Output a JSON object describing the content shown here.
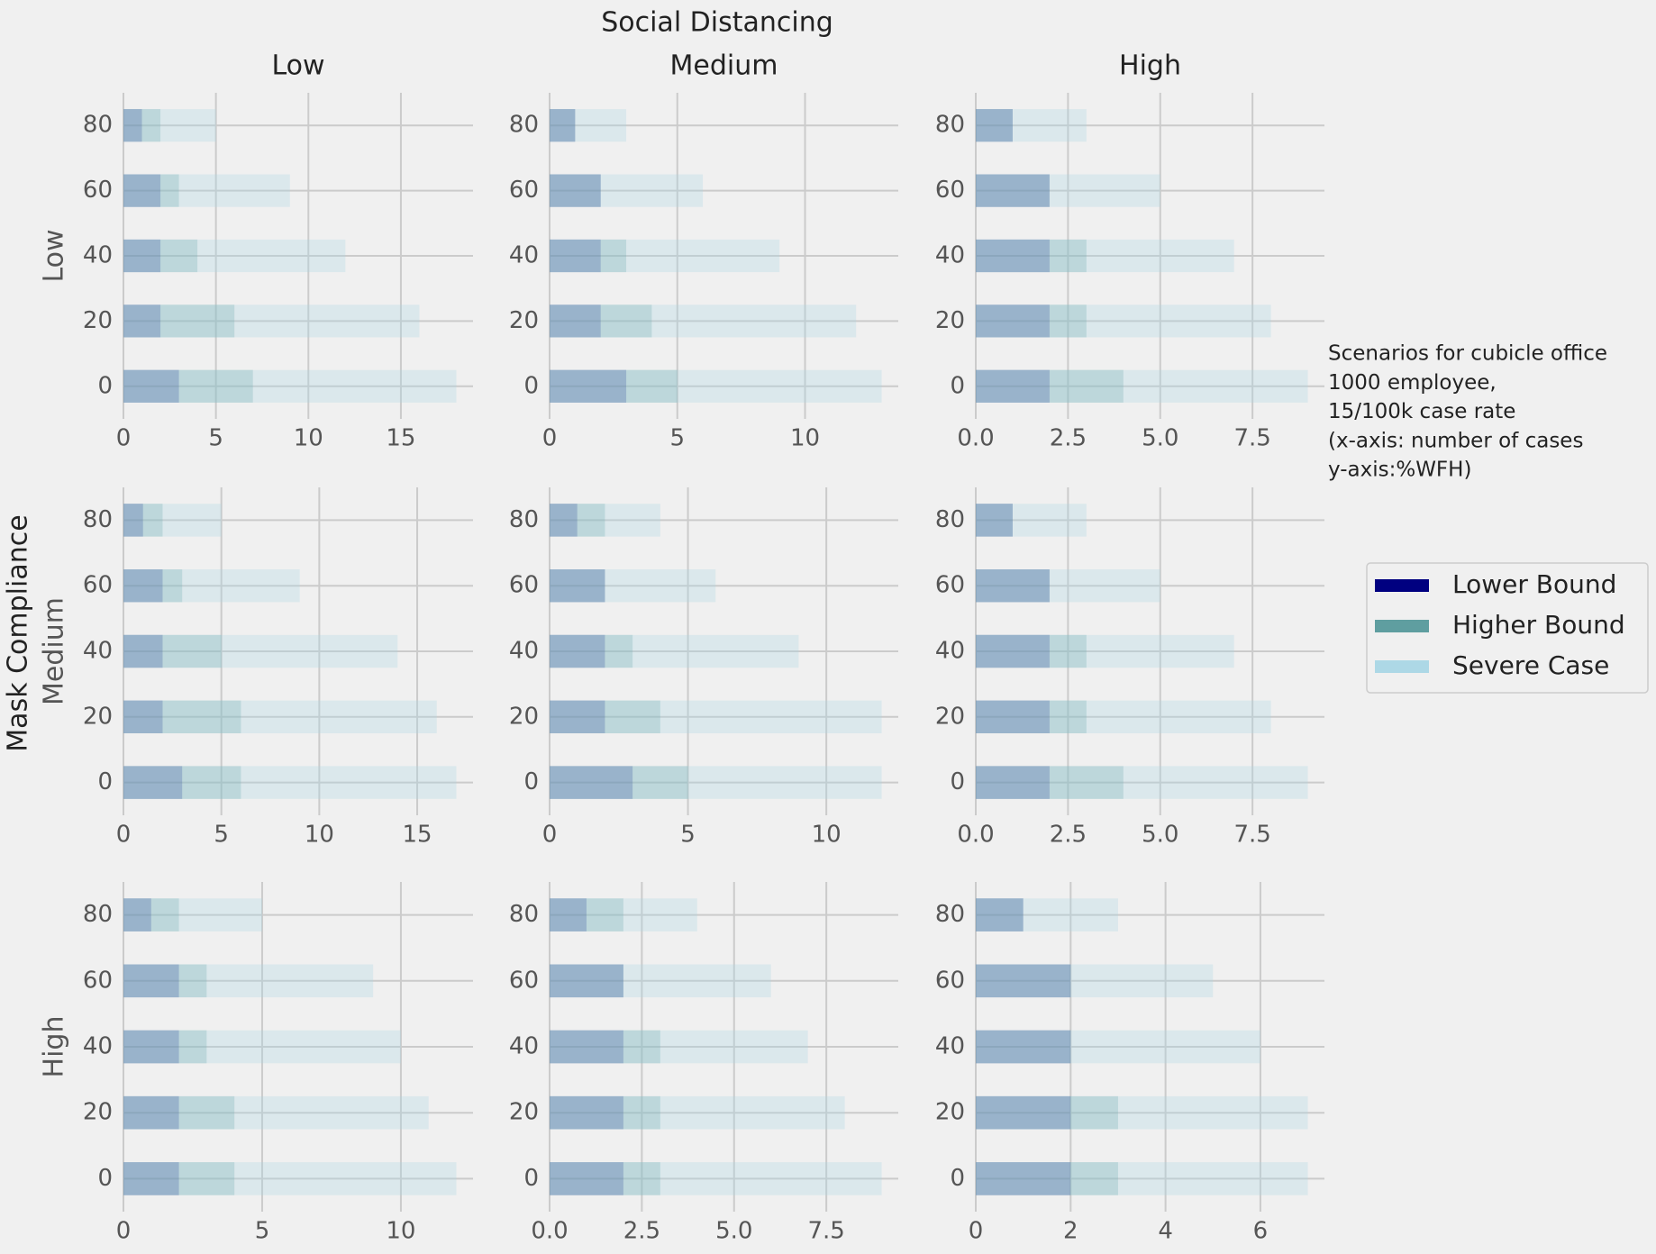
{
  "title": "Social Distancing",
  "column_labels": [
    "Low",
    "Medium",
    "High"
  ],
  "row_labels": [
    "Low",
    "Medium",
    "High"
  ],
  "row_axis_label": "Mask Compliance",
  "annotation": [
    " Scenarios for cubicle office",
    "1000 employee,",
    "15/100k case rate",
    "(x-axis: number of cases",
    "y-axis:%WFH)"
  ],
  "chart_data": [
    {
      "type": "barh",
      "categories": [
        0,
        20,
        40,
        60,
        80
      ],
      "xlim": [
        0,
        18.9
      ],
      "xticks": [
        0,
        5,
        10,
        15
      ],
      "grid": true,
      "series": [
        {
          "name": "Lower Bound",
          "color": "#000080",
          "values": [
            3,
            2,
            2,
            2,
            1
          ]
        },
        {
          "name": "Higher Bound",
          "color": "#5f9ea0",
          "values": [
            7,
            6,
            4,
            3,
            2
          ]
        },
        {
          "name": "Severe Case",
          "color": "#add8e6",
          "values": [
            18,
            16,
            12,
            9,
            5
          ]
        }
      ]
    },
    {
      "type": "barh",
      "categories": [
        0,
        20,
        40,
        60,
        80
      ],
      "xlim": [
        0,
        13.65
      ],
      "xticks": [
        0,
        5,
        10
      ],
      "grid": true,
      "series": [
        {
          "name": "Lower Bound",
          "color": "#000080",
          "values": [
            3,
            2,
            2,
            2,
            1
          ]
        },
        {
          "name": "Higher Bound",
          "color": "#5f9ea0",
          "values": [
            5,
            4,
            3,
            2,
            1
          ]
        },
        {
          "name": "Severe Case",
          "color": "#add8e6",
          "values": [
            13,
            12,
            9,
            6,
            3
          ]
        }
      ]
    },
    {
      "type": "barh",
      "categories": [
        0,
        20,
        40,
        60,
        80
      ],
      "xlim": [
        0,
        9.45
      ],
      "xticks": [
        {
          "value": 0,
          "label": "0.0"
        },
        2.5,
        {
          "value": 5,
          "label": "5.0"
        },
        7.5
      ],
      "grid": true,
      "series": [
        {
          "name": "Lower Bound",
          "color": "#000080",
          "values": [
            2,
            2,
            2,
            2,
            1
          ]
        },
        {
          "name": "Higher Bound",
          "color": "#5f9ea0",
          "values": [
            4,
            3,
            3,
            2,
            1
          ]
        },
        {
          "name": "Severe Case",
          "color": "#add8e6",
          "values": [
            9,
            8,
            7,
            5,
            3
          ]
        }
      ]
    },
    {
      "type": "barh",
      "categories": [
        0,
        20,
        40,
        60,
        80
      ],
      "xlim": [
        0,
        17.85
      ],
      "xticks": [
        0,
        5,
        10,
        15
      ],
      "grid": true,
      "series": [
        {
          "name": "Lower Bound",
          "color": "#000080",
          "values": [
            3,
            2,
            2,
            2,
            1
          ]
        },
        {
          "name": "Higher Bound",
          "color": "#5f9ea0",
          "values": [
            6,
            6,
            5,
            3,
            2
          ]
        },
        {
          "name": "Severe Case",
          "color": "#add8e6",
          "values": [
            17,
            16,
            14,
            9,
            5
          ]
        }
      ]
    },
    {
      "type": "barh",
      "categories": [
        0,
        20,
        40,
        60,
        80
      ],
      "xlim": [
        0,
        12.6
      ],
      "xticks": [
        0,
        5,
        10
      ],
      "grid": true,
      "series": [
        {
          "name": "Lower Bound",
          "color": "#000080",
          "values": [
            3,
            2,
            2,
            2,
            1
          ]
        },
        {
          "name": "Higher Bound",
          "color": "#5f9ea0",
          "values": [
            5,
            4,
            3,
            2,
            2
          ]
        },
        {
          "name": "Severe Case",
          "color": "#add8e6",
          "values": [
            12,
            12,
            9,
            6,
            4
          ]
        }
      ]
    },
    {
      "type": "barh",
      "categories": [
        0,
        20,
        40,
        60,
        80
      ],
      "xlim": [
        0,
        9.45
      ],
      "xticks": [
        {
          "value": 0,
          "label": "0.0"
        },
        2.5,
        {
          "value": 5,
          "label": "5.0"
        },
        7.5
      ],
      "grid": true,
      "series": [
        {
          "name": "Lower Bound",
          "color": "#000080",
          "values": [
            2,
            2,
            2,
            2,
            1
          ]
        },
        {
          "name": "Higher Bound",
          "color": "#5f9ea0",
          "values": [
            4,
            3,
            3,
            2,
            1
          ]
        },
        {
          "name": "Severe Case",
          "color": "#add8e6",
          "values": [
            9,
            8,
            7,
            5,
            3
          ]
        }
      ]
    },
    {
      "type": "barh",
      "categories": [
        0,
        20,
        40,
        60,
        80
      ],
      "xlim": [
        0,
        12.6
      ],
      "xticks": [
        0,
        5,
        10
      ],
      "grid": true,
      "series": [
        {
          "name": "Lower Bound",
          "color": "#000080",
          "values": [
            2,
            2,
            2,
            2,
            1
          ]
        },
        {
          "name": "Higher Bound",
          "color": "#5f9ea0",
          "values": [
            4,
            4,
            3,
            3,
            2
          ]
        },
        {
          "name": "Severe Case",
          "color": "#add8e6",
          "values": [
            12,
            11,
            10,
            9,
            5
          ]
        }
      ]
    },
    {
      "type": "barh",
      "categories": [
        0,
        20,
        40,
        60,
        80
      ],
      "xlim": [
        0,
        9.45
      ],
      "xticks": [
        {
          "value": 0,
          "label": "0.0"
        },
        2.5,
        {
          "value": 5,
          "label": "5.0"
        },
        7.5
      ],
      "grid": true,
      "series": [
        {
          "name": "Lower Bound",
          "color": "#000080",
          "values": [
            2,
            2,
            2,
            2,
            1
          ]
        },
        {
          "name": "Higher Bound",
          "color": "#5f9ea0",
          "values": [
            3,
            3,
            3,
            2,
            2
          ]
        },
        {
          "name": "Severe Case",
          "color": "#add8e6",
          "values": [
            9,
            8,
            7,
            6,
            4
          ]
        }
      ]
    },
    {
      "type": "barh",
      "categories": [
        0,
        20,
        40,
        60,
        80
      ],
      "xlim": [
        0,
        7.35
      ],
      "xticks": [
        0,
        2,
        4,
        6
      ],
      "grid": true,
      "series": [
        {
          "name": "Lower Bound",
          "color": "#000080",
          "values": [
            2,
            2,
            2,
            2,
            1
          ]
        },
        {
          "name": "Higher Bound",
          "color": "#5f9ea0",
          "values": [
            3,
            3,
            2,
            2,
            1
          ]
        },
        {
          "name": "Severe Case",
          "color": "#add8e6",
          "values": [
            7,
            7,
            6,
            5,
            3
          ]
        }
      ]
    }
  ]
}
